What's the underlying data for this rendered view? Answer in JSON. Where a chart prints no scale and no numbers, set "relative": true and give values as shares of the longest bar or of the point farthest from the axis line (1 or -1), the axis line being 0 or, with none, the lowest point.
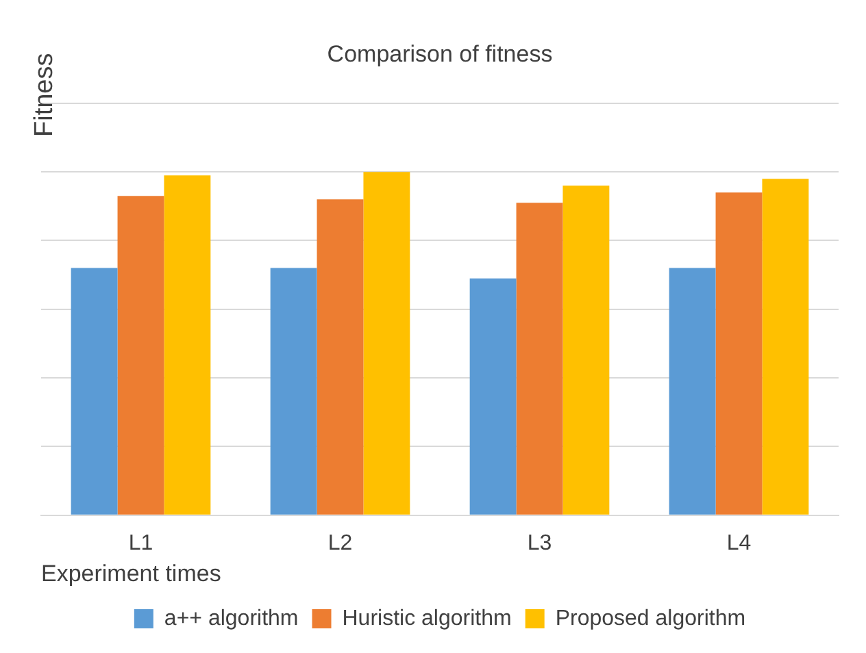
{
  "chart_data": {
    "type": "bar",
    "title": "Comparison of fitness",
    "xlabel": "Experiment times",
    "ylabel": "Fitness",
    "relative": true,
    "grid": "y",
    "legend": "bottom",
    "categories": [
      "L1",
      "L2",
      "L3",
      "L4"
    ],
    "series": [
      {
        "name": "a++ algorithm",
        "color": "#5b9bd5",
        "values": [
          0.72,
          0.72,
          0.69,
          0.72
        ]
      },
      {
        "name": "Huristic algorithm",
        "color": "#ed7d31",
        "values": [
          0.93,
          0.92,
          0.91,
          0.94
        ]
      },
      {
        "name": "Proposed algorithm",
        "color": "#ffc000",
        "values": [
          0.99,
          1,
          0.96,
          0.98
        ]
      }
    ]
  }
}
